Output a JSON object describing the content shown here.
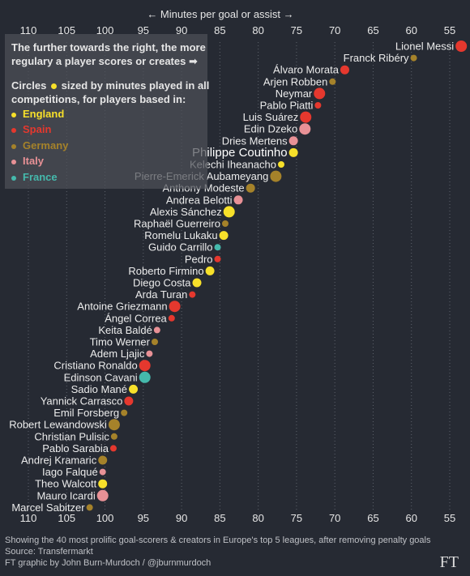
{
  "chart_data": {
    "type": "scatter",
    "xlabel": "← Minutes per goal or assist →",
    "x_reversed": true,
    "xlim": [
      112,
      53
    ],
    "xticks": [
      110,
      105,
      100,
      95,
      90,
      85,
      80,
      75,
      70,
      65,
      60,
      55
    ],
    "highlight": "Philippe Coutinho",
    "points": [
      {
        "name": "Lionel Messi",
        "x": 53.5,
        "league": "Spain",
        "size": "large"
      },
      {
        "name": "Franck Ribéry",
        "x": 59.7,
        "league": "Germany",
        "size": "small"
      },
      {
        "name": "Álvaro Morata",
        "x": 68.7,
        "league": "Spain",
        "size": "medium"
      },
      {
        "name": "Arjen Robben",
        "x": 70.3,
        "league": "Germany",
        "size": "small"
      },
      {
        "name": "Neymar",
        "x": 72.0,
        "league": "Spain",
        "size": "large"
      },
      {
        "name": "Pablo Piatti",
        "x": 72.2,
        "league": "Spain",
        "size": "small"
      },
      {
        "name": "Luis Suárez",
        "x": 73.8,
        "league": "Spain",
        "size": "large"
      },
      {
        "name": "Edin Dzeko",
        "x": 73.9,
        "league": "Italy",
        "size": "large"
      },
      {
        "name": "Dries Mertens",
        "x": 75.4,
        "league": "Italy",
        "size": "medium"
      },
      {
        "name": "Philippe Coutinho",
        "x": 75.4,
        "league": "England",
        "size": "medium"
      },
      {
        "name": "Kelechi Iheanacho",
        "x": 77.0,
        "league": "England",
        "size": "small"
      },
      {
        "name": "Pierre-Emerick Aubameyang",
        "x": 77.7,
        "league": "Germany",
        "size": "large"
      },
      {
        "name": "Anthony Modeste",
        "x": 81.0,
        "league": "Germany",
        "size": "medium"
      },
      {
        "name": "Andrea Belotti",
        "x": 82.6,
        "league": "Italy",
        "size": "medium"
      },
      {
        "name": "Alexis Sánchez",
        "x": 83.8,
        "league": "England",
        "size": "large"
      },
      {
        "name": "Raphaël Guerreiro",
        "x": 84.3,
        "league": "Germany",
        "size": "small"
      },
      {
        "name": "Romelu Lukaku",
        "x": 84.5,
        "league": "England",
        "size": "medium"
      },
      {
        "name": "Guido Carrillo",
        "x": 85.3,
        "league": "France",
        "size": "small"
      },
      {
        "name": "Pedro",
        "x": 85.3,
        "league": "Spain",
        "size": "small"
      },
      {
        "name": "Roberto Firmino",
        "x": 86.3,
        "league": "England",
        "size": "medium"
      },
      {
        "name": "Diego Costa",
        "x": 88.0,
        "league": "England",
        "size": "medium"
      },
      {
        "name": "Arda Turan",
        "x": 88.6,
        "league": "Spain",
        "size": "small"
      },
      {
        "name": "Antoine Griezmann",
        "x": 90.9,
        "league": "Spain",
        "size": "large"
      },
      {
        "name": "Ángel Correa",
        "x": 91.3,
        "league": "Spain",
        "size": "small"
      },
      {
        "name": "Keita Baldé",
        "x": 93.2,
        "league": "Italy",
        "size": "small"
      },
      {
        "name": "Timo Werner",
        "x": 93.5,
        "league": "Germany",
        "size": "small"
      },
      {
        "name": "Adem Ljajic",
        "x": 94.2,
        "league": "Italy",
        "size": "small"
      },
      {
        "name": "Cristiano Ronaldo",
        "x": 94.8,
        "league": "Spain",
        "size": "large"
      },
      {
        "name": "Edinson Cavani",
        "x": 94.8,
        "league": "France",
        "size": "large"
      },
      {
        "name": "Sadio Mané",
        "x": 96.3,
        "league": "England",
        "size": "medium"
      },
      {
        "name": "Yannick Carrasco",
        "x": 96.9,
        "league": "Spain",
        "size": "medium"
      },
      {
        "name": "Emil Forsberg",
        "x": 97.5,
        "league": "Germany",
        "size": "small"
      },
      {
        "name": "Robert Lewandowski",
        "x": 98.8,
        "league": "Germany",
        "size": "large"
      },
      {
        "name": "Christian Pulisic",
        "x": 98.8,
        "league": "Germany",
        "size": "small"
      },
      {
        "name": "Pablo Sarabia",
        "x": 98.9,
        "league": "Spain",
        "size": "small"
      },
      {
        "name": "Andrej Kramaric",
        "x": 100.3,
        "league": "Germany",
        "size": "medium"
      },
      {
        "name": "Iago Falqué",
        "x": 100.3,
        "league": "Italy",
        "size": "small"
      },
      {
        "name": "Theo Walcott",
        "x": 100.3,
        "league": "England",
        "size": "medium"
      },
      {
        "name": "Mauro Icardi",
        "x": 100.3,
        "league": "Italy",
        "size": "large"
      },
      {
        "name": "Marcel Sabitzer",
        "x": 102.0,
        "league": "Germany",
        "size": "small"
      }
    ]
  },
  "colors": {
    "England": "#f7e02a",
    "Spain": "#e5382e",
    "Germany": "#a5822a",
    "Italy": "#e89196",
    "France": "#45b9ac"
  },
  "legend": {
    "intro": "The further towards the right, the more regulary a player scores or creates ➡",
    "note_before": "Circles",
    "note_after": "sized by minutes played in all competitions, for players based in:",
    "items": [
      "England",
      "Spain",
      "Germany",
      "Italy",
      "France"
    ]
  },
  "footer": {
    "line1": "Showing the 40 most prolific goal-scorers & creators in Europe's top 5 leagues, after removing penalty goals",
    "line2": "Source: Transfermarkt",
    "line3": "FT graphic by John Burn-Murdoch / @jburnmurdoch",
    "logo": "FT"
  }
}
